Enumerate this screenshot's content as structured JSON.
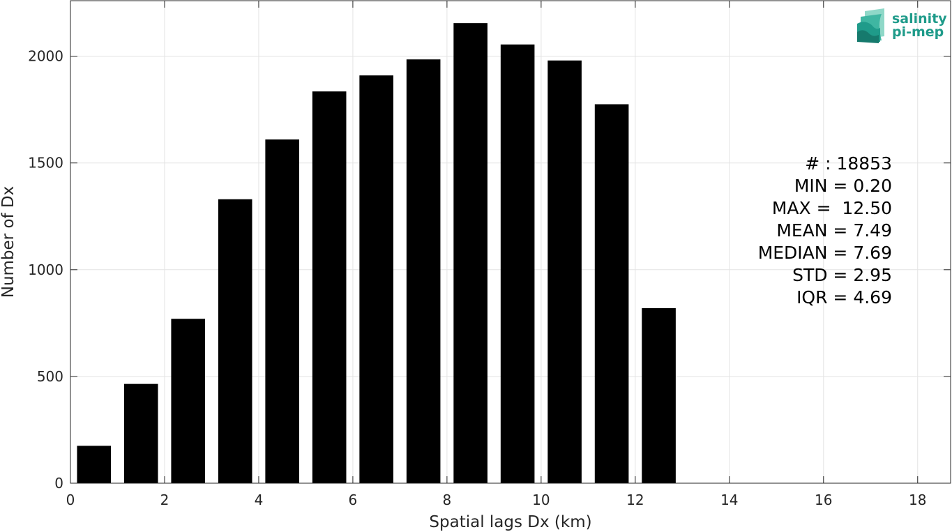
{
  "chart_data": {
    "type": "bar",
    "bar_centers": [
      0.5,
      1.5,
      2.5,
      3.5,
      4.5,
      5.5,
      6.5,
      7.5,
      8.5,
      9.5,
      10.5,
      11.5,
      12.5
    ],
    "bar_width": 0.72,
    "values": [
      175,
      465,
      770,
      1330,
      1610,
      1835,
      1910,
      1985,
      2155,
      2055,
      1980,
      1775,
      820
    ],
    "xlabel": "Spatial lags Dx (km)",
    "ylabel": "Number of Dx",
    "xlim": [
      0,
      18.7
    ],
    "ylim": [
      0,
      2260
    ],
    "xticks": [
      0,
      2,
      4,
      6,
      8,
      10,
      12,
      14,
      16,
      18
    ],
    "yticks": [
      0,
      500,
      1000,
      1500,
      2000
    ],
    "grid": true,
    "bar_color": "#000000",
    "annotations": [
      "# : 18853",
      "MIN = 0.20",
      "MAX =  12.50",
      "MEAN = 7.49",
      "MEDIAN = 7.69",
      "STD = 2.95",
      "IQR = 4.69"
    ]
  },
  "logo": {
    "line1": "salinity",
    "line2": "pi-mep",
    "color": "#1f9b8a",
    "icon": "stacked-wave-layers-icon"
  }
}
